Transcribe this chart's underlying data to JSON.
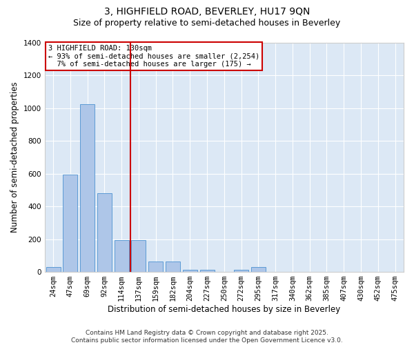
{
  "title_line1": "3, HIGHFIELD ROAD, BEVERLEY, HU17 9QN",
  "title_line2": "Size of property relative to semi-detached houses in Beverley",
  "xlabel": "Distribution of semi-detached houses by size in Beverley",
  "ylabel": "Number of semi-detached properties",
  "categories": [
    "24sqm",
    "47sqm",
    "69sqm",
    "92sqm",
    "114sqm",
    "137sqm",
    "159sqm",
    "182sqm",
    "204sqm",
    "227sqm",
    "250sqm",
    "272sqm",
    "295sqm",
    "317sqm",
    "340sqm",
    "362sqm",
    "385sqm",
    "407sqm",
    "430sqm",
    "452sqm",
    "475sqm"
  ],
  "values": [
    28,
    595,
    1025,
    480,
    193,
    192,
    65,
    65,
    13,
    12,
    0,
    12,
    28,
    0,
    0,
    0,
    0,
    0,
    0,
    0,
    0
  ],
  "bar_color": "#aec6e8",
  "bar_edge_color": "#5b9bd5",
  "property_line_color": "#cc0000",
  "annotation_text": "3 HIGHFIELD ROAD: 130sqm\n← 93% of semi-detached houses are smaller (2,254)\n  7% of semi-detached houses are larger (175) →",
  "annotation_box_color": "#cc0000",
  "background_color": "#dce8f5",
  "grid_color": "#ffffff",
  "ylim": [
    0,
    1400
  ],
  "yticks": [
    0,
    200,
    400,
    600,
    800,
    1000,
    1200,
    1400
  ],
  "footer_text": "Contains HM Land Registry data © Crown copyright and database right 2025.\nContains public sector information licensed under the Open Government Licence v3.0.",
  "title_fontsize": 10,
  "subtitle_fontsize": 9,
  "axis_label_fontsize": 8.5,
  "tick_fontsize": 7.5,
  "annotation_fontsize": 7.5,
  "footer_fontsize": 6.5
}
